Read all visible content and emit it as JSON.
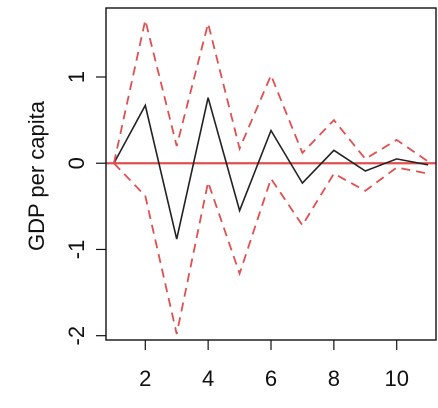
{
  "chart_data": {
    "type": "line",
    "title": "",
    "xlabel": "",
    "ylabel": "GDP per capita",
    "xlim": [
      0.75,
      11.25
    ],
    "ylim": [
      -2.05,
      1.8
    ],
    "x_ticks": [
      2,
      4,
      6,
      8,
      10
    ],
    "y_ticks": [
      -2,
      -1,
      0,
      1
    ],
    "grid": false,
    "legend": "none",
    "x": [
      1,
      2,
      3,
      4,
      5,
      6,
      7,
      8,
      9,
      10,
      11
    ],
    "series": [
      {
        "role": "response",
        "color": "#222222",
        "dash": "solid",
        "values": [
          0,
          0.67,
          -0.88,
          0.76,
          -0.55,
          0.38,
          -0.23,
          0.15,
          -0.09,
          0.05,
          -0.02
        ]
      },
      {
        "role": "upper-bound",
        "color": "#e05050",
        "dash": "dashed",
        "values": [
          0,
          1.66,
          0.2,
          1.62,
          0.17,
          1.02,
          0.12,
          0.5,
          0.05,
          0.27,
          0.02
        ]
      },
      {
        "role": "lower-bound",
        "color": "#e05050",
        "dash": "dashed",
        "values": [
          0,
          -0.38,
          -1.98,
          -0.22,
          -1.28,
          -0.18,
          -0.72,
          -0.12,
          -0.32,
          -0.05,
          -0.12
        ]
      }
    ],
    "reference_line": {
      "y": 0,
      "color": "#e05050"
    }
  }
}
